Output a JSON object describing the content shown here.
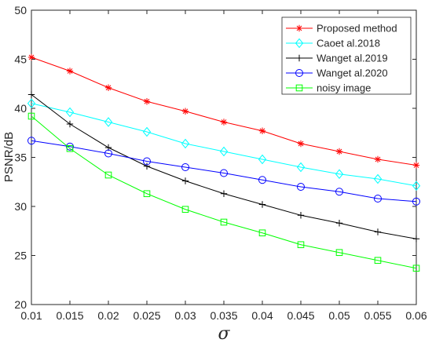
{
  "chart_data": {
    "type": "line",
    "xlabel": "σ",
    "ylabel": "PSNR/dB",
    "xlim": [
      0.01,
      0.06
    ],
    "ylim": [
      20,
      50
    ],
    "x": [
      0.01,
      0.015,
      0.02,
      0.025,
      0.03,
      0.035,
      0.04,
      0.045,
      0.05,
      0.055,
      0.06
    ],
    "x_tick_labels": [
      "0.01",
      "0.015",
      "0.02",
      "0.025",
      "0.03",
      "0.035",
      "0.04",
      "0.045",
      "0.05",
      "0.055",
      "0.06"
    ],
    "y_ticks": [
      20,
      25,
      30,
      35,
      40,
      45,
      50
    ],
    "y_tick_labels": [
      "20",
      "25",
      "30",
      "35",
      "40",
      "45",
      "50"
    ],
    "grid": false,
    "legend_position": "top-right",
    "series": [
      {
        "name": "Proposed method",
        "color": "#ff0000",
        "marker": "asterisk",
        "values": [
          45.2,
          43.8,
          42.1,
          40.7,
          39.7,
          38.6,
          37.7,
          36.4,
          35.6,
          34.8,
          34.2
        ]
      },
      {
        "name": "Caoet al.2018",
        "color": "#00ffff",
        "marker": "diamond",
        "values": [
          40.5,
          39.6,
          38.6,
          37.6,
          36.4,
          35.6,
          34.8,
          34.0,
          33.3,
          32.8,
          32.1
        ]
      },
      {
        "name": "Wanget al.2019",
        "color": "#000000",
        "marker": "plus",
        "values": [
          41.4,
          38.4,
          36.0,
          34.1,
          32.6,
          31.3,
          30.2,
          29.1,
          28.3,
          27.4,
          26.7
        ]
      },
      {
        "name": "Wanget al.2020",
        "color": "#0000ff",
        "marker": "circle",
        "values": [
          36.7,
          36.1,
          35.4,
          34.6,
          34.0,
          33.4,
          32.7,
          32.0,
          31.5,
          30.8,
          30.5
        ]
      },
      {
        "name": "noisy image",
        "color": "#00ff00",
        "marker": "square",
        "values": [
          39.2,
          35.9,
          33.2,
          31.3,
          29.7,
          28.4,
          27.3,
          26.1,
          25.3,
          24.5,
          23.7
        ]
      }
    ]
  }
}
